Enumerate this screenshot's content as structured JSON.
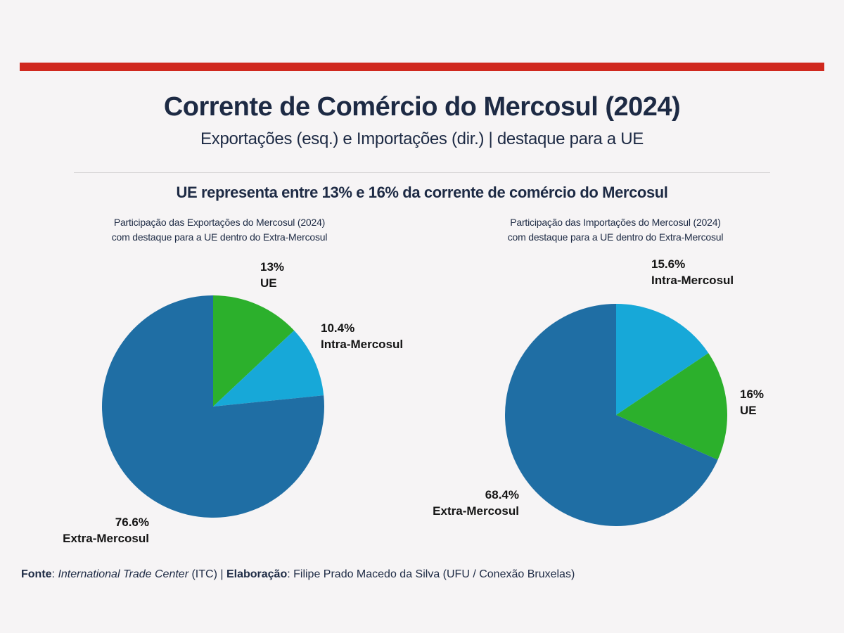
{
  "page": {
    "background": "#f6f4f5",
    "accent_bar_color": "#d0281e",
    "heading_text_color": "#1d2a44",
    "label_text_color": "#141414"
  },
  "header": {
    "title": "Corrente de Comércio do Mercosul (2024)",
    "subtitle": "Exportações (esq.) e Importações (dir.) | destaque para a UE",
    "key_message": "UE representa entre 13% e 16% da corrente de comércio do Mercosul"
  },
  "chart_data": [
    {
      "type": "pie",
      "title": "Participação das Exportações do Mercosul (2024) com destaque para a UE dentro do Extra-Mercosul",
      "title_lines": [
        "Participação das Exportações do Mercosul (2024)",
        "com destaque para a UE dentro do Extra-Mercosul"
      ],
      "start_angle": "12-oclock",
      "direction": "clockwise",
      "slices": [
        {
          "label": "UE",
          "value": 13,
          "display": "13%",
          "color": "#2cb02c"
        },
        {
          "label": "Intra-Mercosul",
          "value": 10.4,
          "display": "10.4%",
          "color": "#17a8d8"
        },
        {
          "label": "Extra-Mercosul",
          "value": 76.6,
          "display": "76.6%",
          "color": "#1f6ea4"
        }
      ]
    },
    {
      "type": "pie",
      "title": "Participação das Importações do Mercosul (2024) com destaque para a UE dentro do Extra-Mercosul",
      "title_lines": [
        "Participação das Importações do Mercosul (2024)",
        "com destaque para a UE dentro do Extra-Mercosul"
      ],
      "start_angle": "12-oclock",
      "direction": "clockwise",
      "slices": [
        {
          "label": "Intra-Mercosul",
          "value": 15.6,
          "display": "15.6%",
          "color": "#17a8d8"
        },
        {
          "label": "UE",
          "value": 16,
          "display": "16%",
          "color": "#2cb02c"
        },
        {
          "label": "Extra-Mercosul",
          "value": 68.4,
          "display": "68.4%",
          "color": "#1f6ea4"
        }
      ]
    }
  ],
  "footer": {
    "source_label": "Fonte",
    "source_sep": ": ",
    "source_name": "International Trade Center",
    "source_suffix": " (ITC) | ",
    "elaboration_label": "Elaboração",
    "elaboration_text": ": Filipe Prado Macedo da Silva (UFU / Conexão Bruxelas)"
  }
}
